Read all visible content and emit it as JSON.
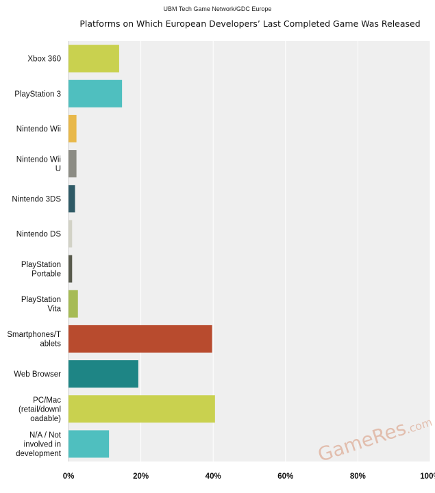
{
  "header": {
    "source": "UBM Tech Game Network/GDC Europe",
    "title": "Platforms on Which European Developers’ Last Completed Game Was Released"
  },
  "chart_data": {
    "type": "bar",
    "orientation": "horizontal",
    "title": "Platforms on Which European Developers’ Last Completed Game Was Released",
    "xlim": [
      0,
      100
    ],
    "x_ticks": [
      0,
      20,
      40,
      60,
      80,
      100
    ],
    "x_tick_labels": [
      "0%",
      "20%",
      "40%",
      "60%",
      "80%",
      "100%"
    ],
    "grid": true,
    "categories": [
      [
        "Xbox 360"
      ],
      [
        "PlayStation 3"
      ],
      [
        "Nintendo Wii"
      ],
      [
        "Nintendo Wii",
        "U"
      ],
      [
        "Nintendo 3DS"
      ],
      [
        "Nintendo DS"
      ],
      [
        "PlayStation",
        "Portable"
      ],
      [
        "PlayStation",
        "Vita"
      ],
      [
        "Smartphones/T",
        "ablets"
      ],
      [
        "Web Browser"
      ],
      [
        "PC/Mac",
        "(retail/downl",
        "oadable)"
      ],
      [
        "N/A / Not",
        "involved in",
        "development"
      ]
    ],
    "values": [
      14,
      14.8,
      2.2,
      2.2,
      1.8,
      1.0,
      1.0,
      2.6,
      39.7,
      19.3,
      40.5,
      11.2
    ],
    "colors": [
      "#c9d14f",
      "#4fbfbf",
      "#e8b84a",
      "#8c8c84",
      "#2f5a66",
      "#d2d2c6",
      "#585a4c",
      "#a6bb55",
      "#b84b2e",
      "#1e8585",
      "#c9d14f",
      "#4fbfbf"
    ]
  },
  "watermark": {
    "text": "GameRes",
    "suffix": ".com"
  }
}
